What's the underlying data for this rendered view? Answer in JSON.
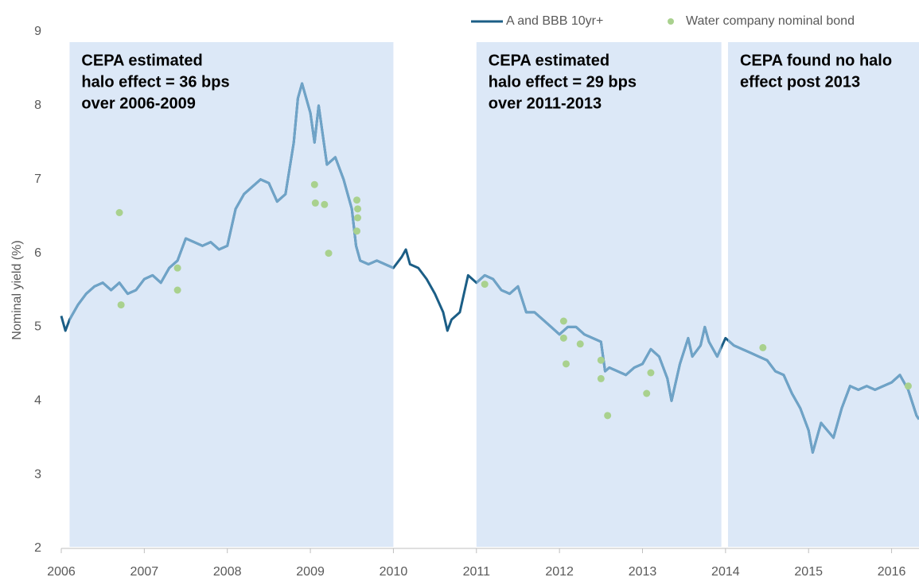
{
  "chart_data": {
    "type": "line",
    "y_label": "Nominal yield (%)",
    "xlim": [
      2006,
      2016.33
    ],
    "xticks": [
      2006,
      2007,
      2008,
      2009,
      2010,
      2011,
      2012,
      2013,
      2014,
      2015,
      2016
    ],
    "ylim": [
      2,
      9
    ],
    "yticks": [
      2,
      3,
      4,
      5,
      6,
      7,
      8,
      9
    ],
    "legend": "top-right",
    "regions": [
      {
        "x0": 2006.1,
        "x1": 2010,
        "color": "#dce8f7",
        "text": [
          "CEPA estimated",
          "halo effect = 36 bps",
          "over 2006-2009"
        ]
      },
      {
        "x0": 2011,
        "x1": 2013.95,
        "color": "#dce8f7",
        "text": [
          "CEPA estimated",
          "halo effect = 29 bps",
          "over 2011-2013"
        ]
      },
      {
        "x0": 2014.03,
        "x1": 2016.33,
        "color": "#dce8f7",
        "text": [
          "CEPA found no halo",
          "effect post 2013"
        ]
      }
    ],
    "series": [
      {
        "name": "A and BBB 10yr+",
        "type": "line",
        "color": "#1b5e86",
        "region_color": "#6fa3c7",
        "x": [
          2006.0,
          2006.05,
          2006.1,
          2006.2,
          2006.3,
          2006.4,
          2006.5,
          2006.6,
          2006.7,
          2006.8,
          2006.9,
          2007.0,
          2007.1,
          2007.2,
          2007.3,
          2007.4,
          2007.5,
          2007.6,
          2007.7,
          2007.8,
          2007.9,
          2008.0,
          2008.1,
          2008.2,
          2008.3,
          2008.4,
          2008.5,
          2008.6,
          2008.7,
          2008.8,
          2008.85,
          2008.9,
          2009.0,
          2009.05,
          2009.1,
          2009.15,
          2009.2,
          2009.3,
          2009.4,
          2009.5,
          2009.55,
          2009.6,
          2009.7,
          2009.8,
          2009.9,
          2010.0,
          2010.1,
          2010.15,
          2010.2,
          2010.3,
          2010.4,
          2010.5,
          2010.6,
          2010.65,
          2010.7,
          2010.8,
          2010.85,
          2010.9,
          2011.0,
          2011.1,
          2011.2,
          2011.3,
          2011.4,
          2011.5,
          2011.6,
          2011.7,
          2011.8,
          2011.9,
          2012.0,
          2012.1,
          2012.2,
          2012.3,
          2012.4,
          2012.5,
          2012.55,
          2012.6,
          2012.7,
          2012.8,
          2012.9,
          2013.0,
          2013.1,
          2013.2,
          2013.3,
          2013.35,
          2013.45,
          2013.55,
          2013.6,
          2013.7,
          2013.75,
          2013.8,
          2013.9,
          2014.0,
          2014.1,
          2014.2,
          2014.3,
          2014.4,
          2014.5,
          2014.6,
          2014.7,
          2014.8,
          2014.9,
          2015.0,
          2015.05,
          2015.15,
          2015.3,
          2015.4,
          2015.5,
          2015.6,
          2015.7,
          2015.8,
          2015.9,
          2016.0,
          2016.1,
          2016.2,
          2016.3,
          2016.33
        ],
        "values": [
          5.15,
          4.95,
          5.1,
          5.3,
          5.45,
          5.55,
          5.6,
          5.5,
          5.6,
          5.45,
          5.5,
          5.65,
          5.7,
          5.6,
          5.8,
          5.9,
          6.2,
          6.15,
          6.1,
          6.15,
          6.05,
          6.1,
          6.6,
          6.8,
          6.9,
          7.0,
          6.95,
          6.7,
          6.8,
          7.5,
          8.1,
          8.3,
          7.9,
          7.5,
          8.0,
          7.6,
          7.2,
          7.3,
          7.0,
          6.6,
          6.1,
          5.9,
          5.85,
          5.9,
          5.85,
          5.8,
          5.95,
          6.05,
          5.85,
          5.8,
          5.65,
          5.45,
          5.2,
          4.95,
          5.1,
          5.2,
          5.45,
          5.7,
          5.6,
          5.7,
          5.65,
          5.5,
          5.45,
          5.55,
          5.2,
          5.2,
          5.1,
          5.0,
          4.9,
          5.0,
          5.0,
          4.9,
          4.85,
          4.8,
          4.4,
          4.45,
          4.4,
          4.35,
          4.45,
          4.5,
          4.7,
          4.6,
          4.3,
          4.0,
          4.5,
          4.85,
          4.6,
          4.75,
          5.0,
          4.8,
          4.6,
          4.85,
          4.75,
          4.7,
          4.65,
          4.6,
          4.55,
          4.4,
          4.35,
          4.1,
          3.9,
          3.6,
          3.3,
          3.7,
          3.5,
          3.9,
          4.2,
          4.15,
          4.2,
          4.15,
          4.2,
          4.25,
          4.35,
          4.15,
          3.8,
          3.75
        ]
      },
      {
        "name": "Water company nominal bond",
        "type": "scatter",
        "color": "#a9d18e",
        "x": [
          2006.7,
          2006.72,
          2007.4,
          2007.4,
          2009.05,
          2009.06,
          2009.17,
          2009.22,
          2009.56,
          2009.57,
          2009.57,
          2009.56,
          2011.1,
          2012.05,
          2012.05,
          2012.08,
          2012.25,
          2012.5,
          2012.5,
          2012.58,
          2013.05,
          2013.1,
          2014.45,
          2016.2
        ],
        "values": [
          6.55,
          5.3,
          5.8,
          5.5,
          6.93,
          6.68,
          6.66,
          6.0,
          6.72,
          6.6,
          6.48,
          6.3,
          5.58,
          5.08,
          4.85,
          4.5,
          4.77,
          4.55,
          4.3,
          3.8,
          4.1,
          4.38,
          4.72,
          4.2
        ]
      }
    ]
  }
}
